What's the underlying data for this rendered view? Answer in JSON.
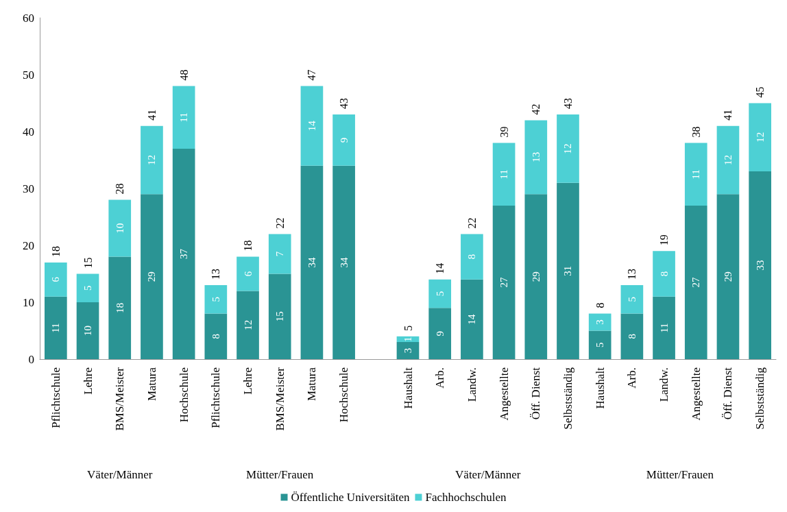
{
  "chart_data": {
    "type": "bar",
    "stacked": true,
    "data_labels": true,
    "grid": false,
    "legend": "bottom",
    "categories": [
      "Pflichtschule",
      "Lehre",
      "BMS/Meister",
      "Matura",
      "Hochschule",
      "Pflichtschule",
      "Lehre",
      "BMS/Meister",
      "Matura",
      "Hochschule",
      null,
      "Haushalt",
      "Arb.",
      "Landw.",
      "Angestellte",
      "Öff. Dienst",
      "Selbstständig",
      "Haushalt",
      "Arb.",
      "Landw.",
      "Angestellte",
      "Öff. Dienst",
      "Selbstständig"
    ],
    "series": [
      {
        "name": "Öffentliche Universitäten",
        "color": "#2a9494",
        "values": [
          11,
          10,
          18,
          29,
          37,
          8,
          12,
          15,
          34,
          34,
          null,
          3,
          9,
          14,
          27,
          29,
          31,
          5,
          8,
          11,
          27,
          29,
          33
        ]
      },
      {
        "name": "Fachhochschulen",
        "color": "#4dd0d4",
        "values": [
          6,
          5,
          10,
          12,
          11,
          5,
          6,
          7,
          14,
          9,
          null,
          1,
          5,
          8,
          11,
          13,
          12,
          3,
          5,
          8,
          11,
          12,
          12
        ]
      }
    ],
    "totals": [
      "18",
      "15",
      "28",
      "41",
      "48",
      "13",
      "18",
      "22",
      "47",
      "43",
      null,
      "5",
      "14",
      "22",
      "39",
      "42",
      "43",
      "8",
      "13",
      "19",
      "38",
      "41",
      "45"
    ],
    "ylim": [
      0,
      60
    ],
    "yticks": [
      0,
      10,
      20,
      30,
      40,
      50,
      60
    ],
    "annotations": [
      "Väter/Männer",
      "Mütter/Frauen",
      "Väter/Männer",
      "Mütter/Frauen"
    ]
  }
}
